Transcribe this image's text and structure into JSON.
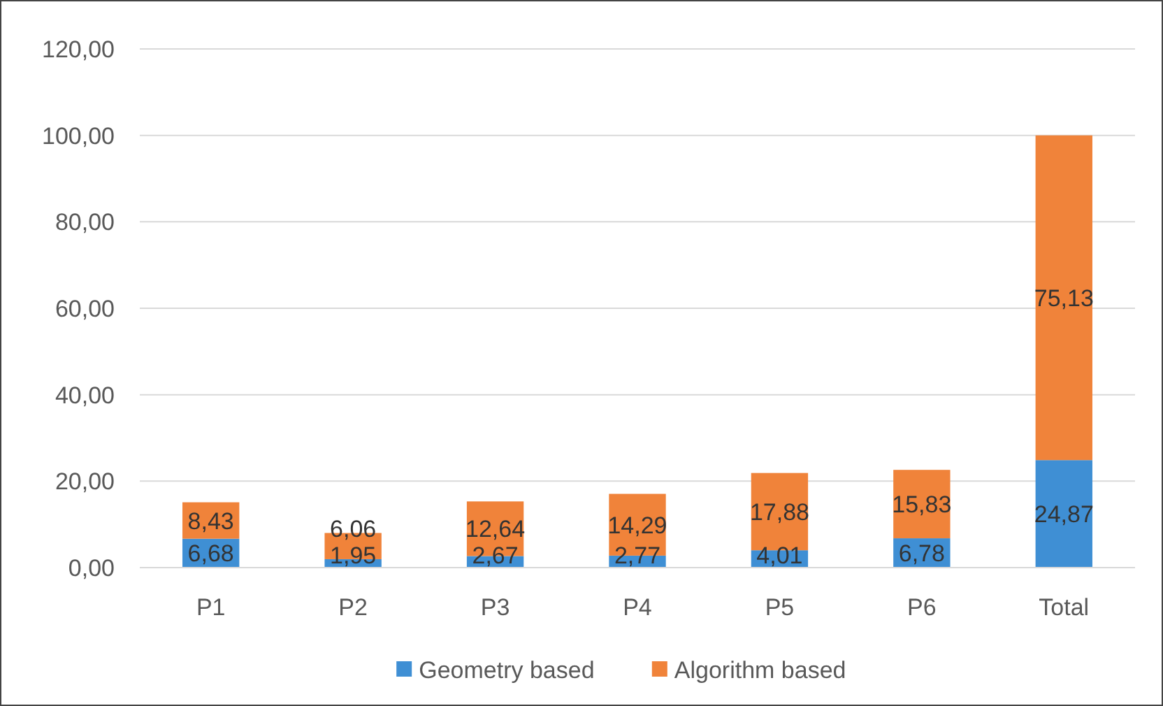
{
  "chart_data": {
    "type": "bar",
    "stacked": true,
    "categories": [
      "P1",
      "P2",
      "P3",
      "P4",
      "P5",
      "P6",
      "Total"
    ],
    "series": [
      {
        "name": "Geometry based",
        "color": "#3f8fd4",
        "values": [
          6.68,
          1.95,
          2.67,
          2.77,
          4.01,
          6.78,
          24.87
        ],
        "value_labels": [
          "6,68",
          "1,95",
          "2,67",
          "2,77",
          "4,01",
          "6,78",
          "24,87"
        ]
      },
      {
        "name": "Algorithm based",
        "color": "#f0833a",
        "values": [
          8.43,
          6.06,
          12.64,
          14.29,
          17.88,
          15.83,
          75.13
        ],
        "value_labels": [
          "8,43",
          "6,06",
          "12,64",
          "14,29",
          "17,88",
          "15,83",
          "75,13"
        ]
      }
    ],
    "ylim": [
      0,
      120
    ],
    "yticks": [
      {
        "value": 0,
        "label": "0,00"
      },
      {
        "value": 20,
        "label": "20,00"
      },
      {
        "value": 40,
        "label": "40,00"
      },
      {
        "value": 60,
        "label": "60,00"
      },
      {
        "value": 80,
        "label": "80,00"
      },
      {
        "value": 100,
        "label": "100,00"
      },
      {
        "value": 120,
        "label": "120,00"
      }
    ],
    "grid": "y",
    "legend": "bottom"
  }
}
